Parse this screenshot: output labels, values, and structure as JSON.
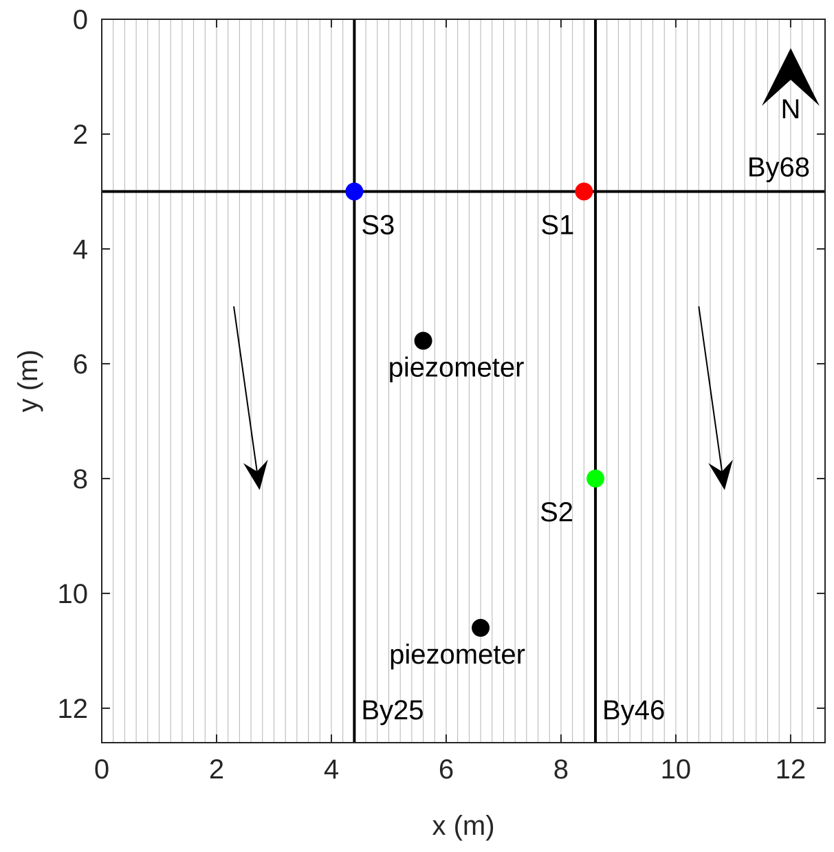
{
  "chart_data": {
    "type": "scatter",
    "xlabel": "x (m)",
    "ylabel": "y (m)",
    "xlim": [
      0,
      12.6
    ],
    "ylim": [
      0,
      12.6
    ],
    "y_reversed": true,
    "x_ticks": [
      0,
      2,
      4,
      6,
      8,
      10,
      12
    ],
    "y_ticks": [
      0,
      2,
      4,
      6,
      8,
      10,
      12
    ],
    "x_tick_labels": [
      "0",
      "2",
      "4",
      "6",
      "8",
      "10",
      "12"
    ],
    "y_tick_labels": [
      "0",
      "2",
      "4",
      "6",
      "8",
      "10",
      "12"
    ],
    "grid": false,
    "background_vertical_lines": {
      "spacing": 0.2,
      "color": "#b4b4b4"
    },
    "lines": [
      {
        "label": "By25",
        "orientation": "vertical",
        "value": 4.4
      },
      {
        "label": "By46",
        "orientation": "vertical",
        "value": 8.6
      },
      {
        "label": "By68",
        "orientation": "horizontal",
        "value": 3.0
      }
    ],
    "points": [
      {
        "label": "S3",
        "x": 4.4,
        "y": 3.0,
        "color": "#0000ff"
      },
      {
        "label": "S1",
        "x": 8.4,
        "y": 3.0,
        "color": "#ff0000"
      },
      {
        "label": "S2",
        "x": 8.6,
        "y": 8.0,
        "color": "#00ff00"
      },
      {
        "label": "piezometer",
        "x": 5.6,
        "y": 5.6,
        "color": "#000000"
      },
      {
        "label": "piezometer",
        "x": 6.6,
        "y": 10.6,
        "color": "#000000"
      }
    ],
    "flow_arrows": [
      {
        "x1": 2.3,
        "y1": 5.0,
        "x2": 2.75,
        "y2": 8.2
      },
      {
        "x1": 10.4,
        "y1": 5.0,
        "x2": 10.85,
        "y2": 8.2
      }
    ],
    "north_arrow_label": "N"
  }
}
